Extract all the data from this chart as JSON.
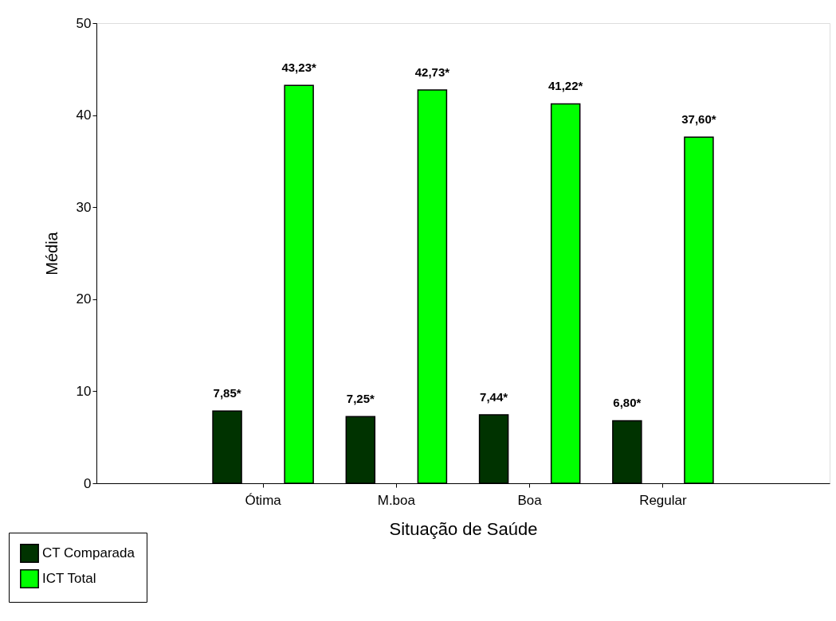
{
  "chart_data": {
    "type": "bar",
    "xlabel": "Situação de Saúde",
    "ylabel": "Média",
    "categories": [
      "Ótima",
      "M.boa",
      "Boa",
      "Regular"
    ],
    "series": [
      {
        "name": "CT Comparada",
        "color": "#003300",
        "values": [
          7.85,
          7.25,
          7.44,
          6.8
        ],
        "value_labels": [
          "7,85*",
          "7,25*",
          "7,44*",
          "6,80*"
        ]
      },
      {
        "name": "ICT Total",
        "color": "#00ff00",
        "values": [
          43.23,
          42.73,
          41.22,
          37.6
        ],
        "value_labels": [
          "43,23*",
          "42,73*",
          "41,22*",
          "37,60*"
        ]
      }
    ],
    "ylim": [
      0,
      50
    ],
    "yticks": [
      0,
      10,
      20,
      30,
      40,
      50
    ],
    "grid": false,
    "legend": "bottom left"
  }
}
